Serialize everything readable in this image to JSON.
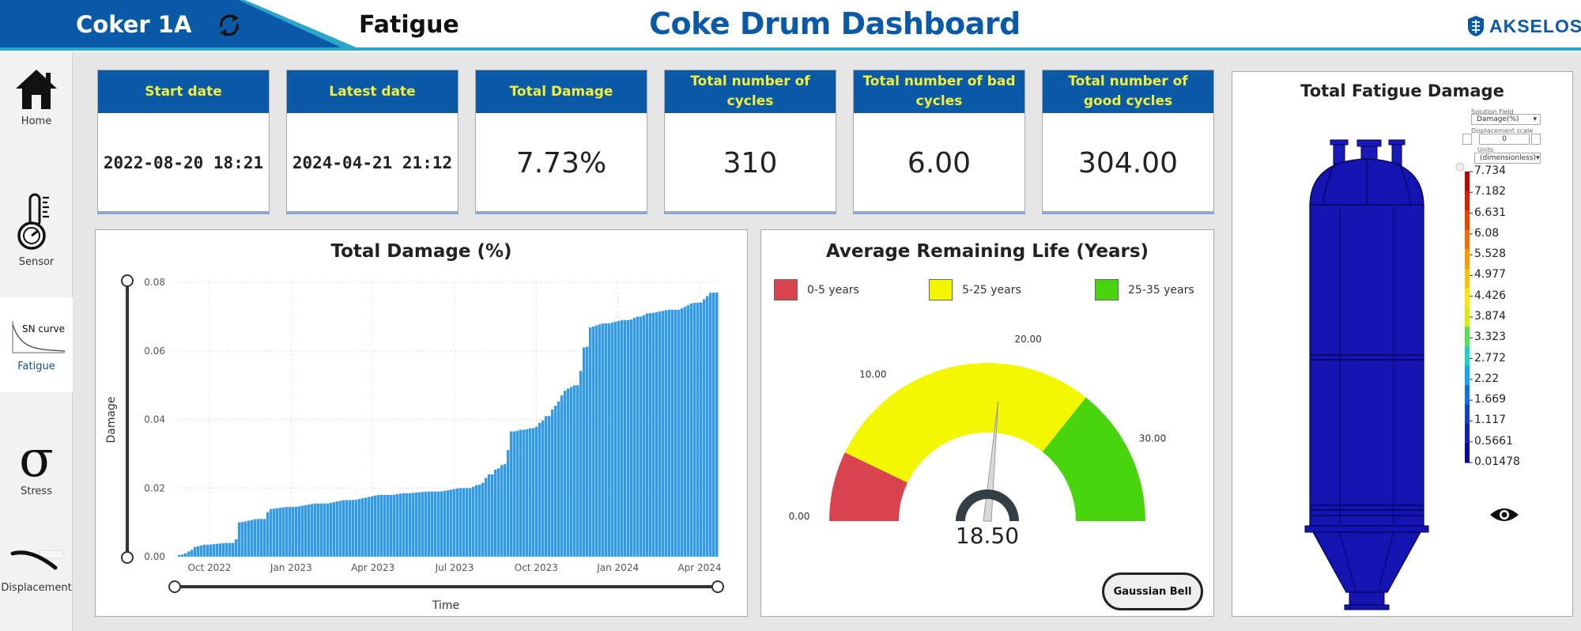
{
  "header": {
    "unit": "Coker 1A",
    "section": "Fatigue",
    "title": "Coke Drum Dashboard",
    "brand": "AKSELOS",
    "colors": {
      "band": "#0a5aa8",
      "accent": "#2aa6c8",
      "title": "#0a5aa8"
    }
  },
  "sidebar": {
    "items": [
      {
        "label": "Home",
        "icon": "home-icon"
      },
      {
        "label": "Sensor",
        "icon": "thermometer-gauge-icon"
      },
      {
        "label": "Fatigue",
        "icon": "sn-curve-icon",
        "thumb_text": "SN curve",
        "active": true
      },
      {
        "label": "Stress",
        "icon": "sigma-icon"
      },
      {
        "label": "Displacement",
        "icon": "displacement-icon"
      }
    ]
  },
  "kpis": [
    {
      "label": "Start date",
      "value": "2022-08-20 18:21"
    },
    {
      "label": "Latest date",
      "value": "2024-04-21 21:12"
    },
    {
      "label": "Total Damage",
      "value": "7.73%"
    },
    {
      "label": "Total number of cycles",
      "value": "310"
    },
    {
      "label": "Total number of bad cycles",
      "value": "6.00"
    },
    {
      "label": "Total number of good cycles",
      "value": "304.00"
    }
  ],
  "damage_panel": {
    "title": "Total Damage (%)"
  },
  "gauge_panel": {
    "title": "Average Remaining Life (Years)",
    "legend": [
      {
        "label": "0-5 years",
        "color": "#d9434e"
      },
      {
        "label": "5-25 years",
        "color": "#f3f700"
      },
      {
        "label": "25-35 years",
        "color": "#47d40c"
      }
    ],
    "button": "Gaussian Bell"
  },
  "viewer_panel": {
    "title": "Total Fatigue Damage",
    "controls": {
      "solution_label": "Solution Field",
      "solution_value": "Damage(%)",
      "disp_label": "Displacement scale",
      "disp_value": "0",
      "units_label": "Units",
      "units_value": "(dimensionless)"
    },
    "colorbar": {
      "labels": [
        "7.734",
        "7.182",
        "6.631",
        "6.08",
        "5.528",
        "4.977",
        "4.426",
        "3.874",
        "3.323",
        "2.772",
        "2.22",
        "1.669",
        "1.117",
        "0.5661",
        "0.01478"
      ],
      "colors": [
        "#c00000",
        "#e01b00",
        "#f04000",
        "#f86a00",
        "#fd9800",
        "#ffc000",
        "#ffe800",
        "#d8f000",
        "#50e050",
        "#20d0c0",
        "#10a8f0",
        "#1070e8",
        "#1040d0",
        "#1020c0",
        "#0a00b0"
      ]
    }
  },
  "chart_data": [
    {
      "type": "bar",
      "title": "Total Damage (%)",
      "xlabel": "Time",
      "ylabel": "Damage",
      "ylim": [
        0,
        0.08
      ],
      "yticks": [
        "0.00",
        "0.02",
        "0.04",
        "0.06",
        "0.08"
      ],
      "xticks": [
        "Oct 2022",
        "Jan 2023",
        "Apr 2023",
        "Jul 2023",
        "Oct 2023",
        "Jan 2024",
        "Apr 2024"
      ],
      "color": "#3399ee",
      "series_points": [
        [
          0.0,
          0.0
        ],
        [
          0.01,
          0.0005
        ],
        [
          0.02,
          0.001
        ],
        [
          0.03,
          0.002
        ],
        [
          0.04,
          0.003
        ],
        [
          0.06,
          0.0035
        ],
        [
          0.11,
          0.004
        ],
        [
          0.12,
          0.01
        ],
        [
          0.165,
          0.011
        ],
        [
          0.17,
          0.013
        ],
        [
          0.18,
          0.014
        ],
        [
          0.22,
          0.0145
        ],
        [
          0.28,
          0.0155
        ],
        [
          0.33,
          0.0165
        ],
        [
          0.4,
          0.018
        ],
        [
          0.43,
          0.0185
        ],
        [
          0.49,
          0.019
        ],
        [
          0.545,
          0.02
        ],
        [
          0.565,
          0.021
        ],
        [
          0.585,
          0.024
        ],
        [
          0.595,
          0.0255
        ],
        [
          0.61,
          0.027
        ],
        [
          0.625,
          0.0365
        ],
        [
          0.645,
          0.037
        ],
        [
          0.665,
          0.0375
        ],
        [
          0.675,
          0.039
        ],
        [
          0.69,
          0.041
        ],
        [
          0.705,
          0.044
        ],
        [
          0.715,
          0.047
        ],
        [
          0.725,
          0.049
        ],
        [
          0.745,
          0.05
        ],
        [
          0.76,
          0.061
        ],
        [
          0.77,
          0.067
        ],
        [
          0.8,
          0.068
        ],
        [
          0.84,
          0.069
        ],
        [
          0.86,
          0.07
        ],
        [
          0.88,
          0.071
        ],
        [
          0.93,
          0.072
        ],
        [
          0.97,
          0.074
        ],
        [
          1.0,
          0.077
        ]
      ]
    },
    {
      "type": "gauge",
      "title": "Average Remaining Life (Years)",
      "min": 0,
      "max": 35,
      "value": 18.5,
      "value_label": "18.50",
      "bands": [
        {
          "from": 0,
          "to": 5,
          "color": "#d9434e"
        },
        {
          "from": 5,
          "to": 25,
          "color": "#f3f700"
        },
        {
          "from": 25,
          "to": 35,
          "color": "#47d40c"
        }
      ],
      "tick_labels": [
        {
          "value": 0,
          "label": "0.00"
        },
        {
          "value": 10,
          "label": "10.00"
        },
        {
          "value": 20,
          "label": "20.00"
        },
        {
          "value": 30,
          "label": "30.00"
        }
      ]
    }
  ]
}
